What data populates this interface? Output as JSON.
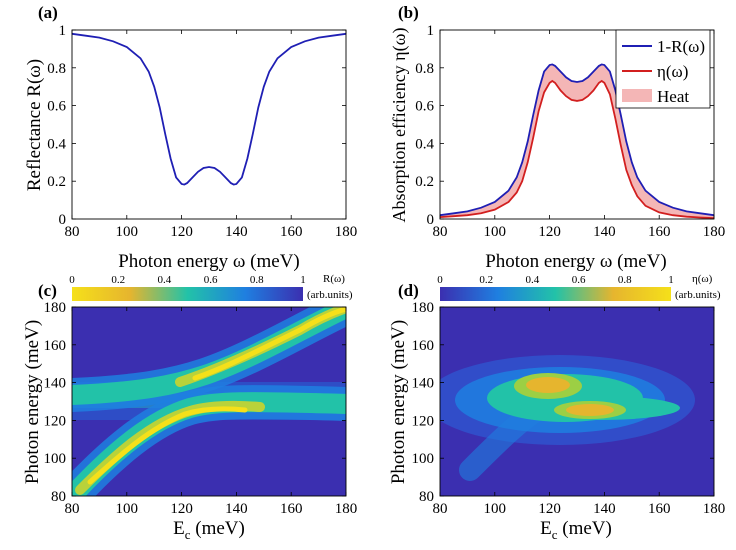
{
  "colors": {
    "blue": "#1f1fb4",
    "red": "#d21f1f",
    "heat_fill": "#f4b6b6",
    "map_low": "#3b2fb0",
    "map_mid": "#22c2a8",
    "map_high": "#f5e01a"
  },
  "chart_data": [
    {
      "panel": "(a)",
      "type": "line",
      "xlabel": "Photon energy ω (meV)",
      "ylabel": "Reflectance R(ω)",
      "xlim": [
        80,
        180
      ],
      "ylim": [
        0,
        1
      ],
      "xticks": [
        "80",
        "100",
        "120",
        "140",
        "160",
        "180"
      ],
      "yticks": [
        "0",
        "0.2",
        "0.4",
        "0.6",
        "0.8",
        "1"
      ],
      "series": [
        {
          "x": [
            80,
            85,
            90,
            95,
            100,
            105,
            108,
            110,
            112,
            114,
            116,
            118,
            120,
            121,
            122,
            124,
            126,
            128,
            130,
            132,
            134,
            136,
            138,
            139,
            140,
            142,
            144,
            146,
            148,
            150,
            152,
            155,
            160,
            165,
            170,
            175,
            180
          ],
          "y": [
            0.98,
            0.97,
            0.96,
            0.94,
            0.91,
            0.85,
            0.78,
            0.7,
            0.59,
            0.45,
            0.32,
            0.22,
            0.185,
            0.182,
            0.19,
            0.22,
            0.25,
            0.27,
            0.275,
            0.27,
            0.25,
            0.22,
            0.19,
            0.182,
            0.185,
            0.22,
            0.32,
            0.45,
            0.59,
            0.7,
            0.78,
            0.85,
            0.91,
            0.94,
            0.96,
            0.97,
            0.98
          ]
        }
      ]
    },
    {
      "panel": "(b)",
      "type": "area",
      "xlabel": "Photon energy ω (meV)",
      "ylabel": "Absorption efficiency η(ω)",
      "xlim": [
        80,
        180
      ],
      "ylim": [
        0,
        1
      ],
      "xticks": [
        "80",
        "100",
        "120",
        "140",
        "160",
        "180"
      ],
      "yticks": [
        "0",
        "0.2",
        "0.4",
        "0.6",
        "0.8",
        "1"
      ],
      "legend": [
        "1-R(ω)",
        "η(ω)",
        "Heat"
      ],
      "legend_position": "top-right",
      "x": [
        80,
        85,
        90,
        95,
        100,
        105,
        108,
        110,
        112,
        114,
        116,
        118,
        120,
        121,
        122,
        124,
        126,
        128,
        130,
        132,
        134,
        136,
        138,
        139,
        140,
        142,
        144,
        146,
        148,
        150,
        152,
        155,
        160,
        165,
        170,
        175,
        180
      ],
      "series": [
        {
          "name": "1-R(ω)",
          "y": [
            0.02,
            0.03,
            0.04,
            0.06,
            0.09,
            0.15,
            0.22,
            0.3,
            0.41,
            0.55,
            0.68,
            0.78,
            0.815,
            0.818,
            0.81,
            0.78,
            0.75,
            0.73,
            0.725,
            0.73,
            0.75,
            0.78,
            0.81,
            0.818,
            0.815,
            0.78,
            0.68,
            0.55,
            0.41,
            0.3,
            0.22,
            0.15,
            0.09,
            0.06,
            0.04,
            0.03,
            0.02
          ]
        },
        {
          "name": "η(ω)",
          "y": [
            0.01,
            0.015,
            0.02,
            0.03,
            0.05,
            0.09,
            0.14,
            0.2,
            0.3,
            0.43,
            0.57,
            0.67,
            0.72,
            0.73,
            0.72,
            0.68,
            0.65,
            0.63,
            0.625,
            0.63,
            0.65,
            0.68,
            0.72,
            0.73,
            0.72,
            0.66,
            0.53,
            0.39,
            0.26,
            0.18,
            0.12,
            0.07,
            0.035,
            0.02,
            0.012,
            0.008,
            0.005
          ]
        }
      ]
    },
    {
      "panel": "(c)",
      "type": "heatmap",
      "xlabel": "Ec (meV)",
      "ylabel": "Photon energy (meV)",
      "xlim": [
        80,
        180
      ],
      "ylim": [
        80,
        180
      ],
      "xticks": [
        "80",
        "100",
        "120",
        "140",
        "160",
        "180"
      ],
      "yticks": [
        "80",
        "100",
        "120",
        "140",
        "160",
        "180"
      ],
      "colorbar_label": "R(ω)",
      "colorbar_unit": "(arb.units)",
      "colorbar_ticks": [
        "0",
        "0.2",
        "0.4",
        "0.6",
        "0.8",
        "1"
      ],
      "colorbar_reversed": true,
      "cavity_mode_meV": 130,
      "description_values": {
        "lower_branch_peak_at_Ec": 135,
        "upper_branch_peak_at_Ec": 130
      }
    },
    {
      "panel": "(d)",
      "type": "heatmap",
      "xlabel": "Ec (meV)",
      "ylabel": "Photon energy (meV)",
      "xlim": [
        80,
        180
      ],
      "ylim": [
        80,
        180
      ],
      "xticks": [
        "80",
        "100",
        "120",
        "140",
        "160",
        "180"
      ],
      "yticks": [
        "80",
        "100",
        "120",
        "140",
        "160",
        "180"
      ],
      "colorbar_label": "η(ω)",
      "colorbar_unit": "(arb.units)",
      "colorbar_ticks": [
        "0",
        "0.2",
        "0.4",
        "0.6",
        "0.8",
        "1"
      ],
      "colorbar_reversed": false,
      "cavity_mode_meV": 130
    }
  ]
}
